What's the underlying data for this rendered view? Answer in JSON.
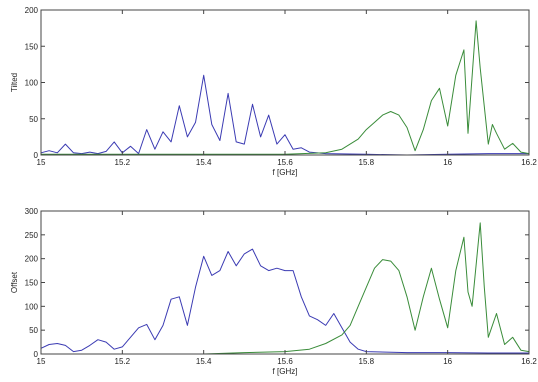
{
  "chart_data": [
    {
      "type": "line",
      "title": "",
      "xlabel": "f [GHz]",
      "ylabel": "Tilted",
      "xlim": [
        15,
        16.2
      ],
      "ylim": [
        0,
        200
      ],
      "xticks": [
        15,
        15.2,
        15.4,
        15.6,
        15.8,
        16,
        16.2
      ],
      "xtick_labels": [
        "15",
        "15.2",
        "15.4",
        "15.6",
        "15.8",
        "16",
        "16.2"
      ],
      "yticks": [
        0,
        50,
        100,
        150,
        200
      ],
      "ytick_labels": [
        "0",
        "50",
        "100",
        "150",
        "200"
      ],
      "grid": false,
      "series": [
        {
          "color": "#3b3bb3",
          "points": [
            [
              15,
              3
            ],
            [
              15.02,
              6
            ],
            [
              15.04,
              3
            ],
            [
              15.06,
              15
            ],
            [
              15.08,
              3
            ],
            [
              15.1,
              2
            ],
            [
              15.12,
              4
            ],
            [
              15.14,
              2
            ],
            [
              15.16,
              5
            ],
            [
              15.18,
              18
            ],
            [
              15.2,
              3
            ],
            [
              15.22,
              12
            ],
            [
              15.24,
              2
            ],
            [
              15.26,
              35
            ],
            [
              15.28,
              8
            ],
            [
              15.3,
              32
            ],
            [
              15.32,
              18
            ],
            [
              15.34,
              68
            ],
            [
              15.36,
              25
            ],
            [
              15.38,
              45
            ],
            [
              15.4,
              110
            ],
            [
              15.42,
              42
            ],
            [
              15.44,
              20
            ],
            [
              15.46,
              85
            ],
            [
              15.48,
              18
            ],
            [
              15.5,
              15
            ],
            [
              15.52,
              70
            ],
            [
              15.54,
              25
            ],
            [
              15.56,
              55
            ],
            [
              15.58,
              15
            ],
            [
              15.6,
              28
            ],
            [
              15.62,
              8
            ],
            [
              15.64,
              10
            ],
            [
              15.66,
              4
            ],
            [
              15.7,
              2
            ],
            [
              15.8,
              1
            ],
            [
              15.9,
              0
            ],
            [
              16,
              1
            ],
            [
              16.1,
              2
            ],
            [
              16.2,
              2
            ]
          ]
        },
        {
          "color": "#3a8c3a",
          "points": [
            [
              15,
              1
            ],
            [
              15.6,
              1
            ],
            [
              15.7,
              3
            ],
            [
              15.74,
              8
            ],
            [
              15.78,
              22
            ],
            [
              15.8,
              35
            ],
            [
              15.82,
              45
            ],
            [
              15.84,
              55
            ],
            [
              15.86,
              60
            ],
            [
              15.88,
              55
            ],
            [
              15.9,
              38
            ],
            [
              15.92,
              6
            ],
            [
              15.94,
              35
            ],
            [
              15.96,
              75
            ],
            [
              15.98,
              92
            ],
            [
              16,
              40
            ],
            [
              16.02,
              110
            ],
            [
              16.04,
              145
            ],
            [
              16.05,
              30
            ],
            [
              16.07,
              185
            ],
            [
              16.08,
              120
            ],
            [
              16.1,
              15
            ],
            [
              16.11,
              42
            ],
            [
              16.12,
              30
            ],
            [
              16.14,
              8
            ],
            [
              16.16,
              16
            ],
            [
              16.18,
              4
            ],
            [
              16.2,
              2
            ]
          ]
        }
      ]
    },
    {
      "type": "line",
      "title": "",
      "xlabel": "f [GHz]",
      "ylabel": "Offset",
      "xlim": [
        15,
        16.2
      ],
      "ylim": [
        0,
        300
      ],
      "xticks": [
        15,
        15.2,
        15.4,
        15.6,
        15.8,
        16,
        16.2
      ],
      "xtick_labels": [
        "15",
        "15.2",
        "15.4",
        "15.6",
        "15.8",
        "16",
        "16.2"
      ],
      "yticks": [
        0,
        50,
        100,
        150,
        200,
        250,
        300
      ],
      "ytick_labels": [
        "0",
        "50",
        "100",
        "150",
        "200",
        "250",
        "300"
      ],
      "grid": false,
      "series": [
        {
          "color": "#3b3bb3",
          "points": [
            [
              15,
              12
            ],
            [
              15.02,
              20
            ],
            [
              15.04,
              22
            ],
            [
              15.06,
              18
            ],
            [
              15.08,
              5
            ],
            [
              15.1,
              8
            ],
            [
              15.12,
              18
            ],
            [
              15.14,
              30
            ],
            [
              15.16,
              25
            ],
            [
              15.18,
              10
            ],
            [
              15.2,
              15
            ],
            [
              15.22,
              35
            ],
            [
              15.24,
              55
            ],
            [
              15.26,
              62
            ],
            [
              15.28,
              30
            ],
            [
              15.3,
              60
            ],
            [
              15.32,
              115
            ],
            [
              15.34,
              120
            ],
            [
              15.36,
              60
            ],
            [
              15.38,
              140
            ],
            [
              15.4,
              205
            ],
            [
              15.42,
              165
            ],
            [
              15.44,
              175
            ],
            [
              15.46,
              215
            ],
            [
              15.48,
              185
            ],
            [
              15.5,
              210
            ],
            [
              15.52,
              220
            ],
            [
              15.54,
              185
            ],
            [
              15.56,
              175
            ],
            [
              15.58,
              180
            ],
            [
              15.6,
              175
            ],
            [
              15.62,
              175
            ],
            [
              15.64,
              120
            ],
            [
              15.66,
              80
            ],
            [
              15.68,
              72
            ],
            [
              15.7,
              60
            ],
            [
              15.72,
              85
            ],
            [
              15.74,
              55
            ],
            [
              15.76,
              25
            ],
            [
              15.78,
              10
            ],
            [
              15.8,
              5
            ],
            [
              15.9,
              3
            ],
            [
              16,
              3
            ],
            [
              16.1,
              2
            ],
            [
              16.2,
              2
            ]
          ]
        },
        {
          "color": "#3a8c3a",
          "points": [
            [
              15,
              0
            ],
            [
              15.4,
              0
            ],
            [
              15.5,
              3
            ],
            [
              15.6,
              5
            ],
            [
              15.66,
              10
            ],
            [
              15.7,
              22
            ],
            [
              15.74,
              40
            ],
            [
              15.76,
              60
            ],
            [
              15.78,
              100
            ],
            [
              15.8,
              140
            ],
            [
              15.82,
              180
            ],
            [
              15.84,
              198
            ],
            [
              15.86,
              195
            ],
            [
              15.88,
              175
            ],
            [
              15.9,
              120
            ],
            [
              15.92,
              50
            ],
            [
              15.94,
              120
            ],
            [
              15.96,
              180
            ],
            [
              15.98,
              115
            ],
            [
              16,
              55
            ],
            [
              16.02,
              175
            ],
            [
              16.04,
              245
            ],
            [
              16.05,
              130
            ],
            [
              16.06,
              100
            ],
            [
              16.08,
              275
            ],
            [
              16.09,
              140
            ],
            [
              16.1,
              35
            ],
            [
              16.12,
              85
            ],
            [
              16.14,
              20
            ],
            [
              16.16,
              35
            ],
            [
              16.18,
              8
            ],
            [
              16.2,
              5
            ]
          ]
        }
      ]
    }
  ]
}
